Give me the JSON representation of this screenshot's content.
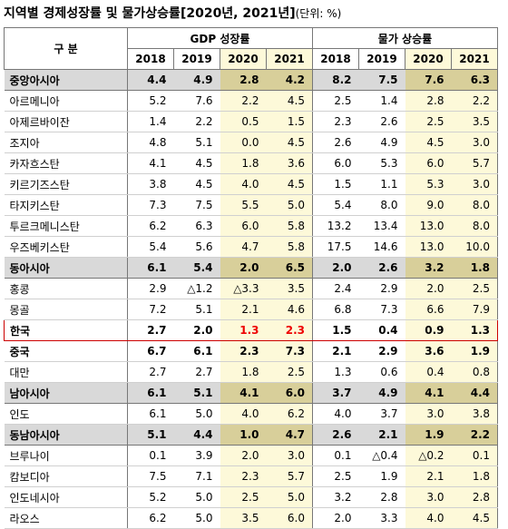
{
  "header": {
    "title": "지역별 경제성장률 및 물가상승률[2020년, 2021년]",
    "unit": "(단위: %)"
  },
  "table": {
    "label_header": "구 분",
    "groups": [
      "GDP 성장률",
      "물가 상승률"
    ],
    "years": [
      "2018",
      "2019",
      "2020",
      "2021",
      "2018",
      "2019",
      "2020",
      "2021"
    ],
    "rows": [
      [
        "중앙아시아",
        "4.4",
        "4.9",
        "2.8",
        "4.2",
        "8.2",
        "7.5",
        "7.6",
        "6.3"
      ],
      [
        "아르메니아",
        "5.2",
        "7.6",
        "2.2",
        "4.5",
        "2.5",
        "1.4",
        "2.8",
        "2.2"
      ],
      [
        "아제르바이잔",
        "1.4",
        "2.2",
        "0.5",
        "1.5",
        "2.3",
        "2.6",
        "2.5",
        "3.5"
      ],
      [
        "조지아",
        "4.8",
        "5.1",
        "0.0",
        "4.5",
        "2.6",
        "4.9",
        "4.5",
        "3.0"
      ],
      [
        "카자흐스탄",
        "4.1",
        "4.5",
        "1.8",
        "3.6",
        "6.0",
        "5.3",
        "6.0",
        "5.7"
      ],
      [
        "키르기즈스탄",
        "3.8",
        "4.5",
        "4.0",
        "4.5",
        "1.5",
        "1.1",
        "5.3",
        "3.0"
      ],
      [
        "타지키스탄",
        "7.3",
        "7.5",
        "5.5",
        "5.0",
        "5.4",
        "8.0",
        "9.0",
        "8.0"
      ],
      [
        "투르크메니스탄",
        "6.2",
        "6.3",
        "6.0",
        "5.8",
        "13.2",
        "13.4",
        "13.0",
        "8.0"
      ],
      [
        "우즈베키스탄",
        "5.4",
        "5.6",
        "4.7",
        "5.8",
        "17.5",
        "14.6",
        "13.0",
        "10.0"
      ],
      [
        "동아시아",
        "6.1",
        "5.4",
        "2.0",
        "6.5",
        "2.0",
        "2.6",
        "3.2",
        "1.8"
      ],
      [
        "홍콩",
        "2.9",
        "△1.2",
        "△3.3",
        "3.5",
        "2.4",
        "2.9",
        "2.0",
        "2.5"
      ],
      [
        "몽골",
        "7.2",
        "5.1",
        "2.1",
        "4.6",
        "6.8",
        "7.3",
        "6.6",
        "7.9"
      ],
      [
        "한국",
        "2.7",
        "2.0",
        "1.3",
        "2.3",
        "1.5",
        "0.4",
        "0.9",
        "1.3"
      ],
      [
        "중국",
        "6.7",
        "6.1",
        "2.3",
        "7.3",
        "2.1",
        "2.9",
        "3.6",
        "1.9"
      ],
      [
        "대만",
        "2.7",
        "2.7",
        "1.8",
        "2.5",
        "1.3",
        "0.6",
        "0.4",
        "0.8"
      ],
      [
        "남아시아",
        "6.1",
        "5.1",
        "4.1",
        "6.0",
        "3.7",
        "4.9",
        "4.1",
        "4.4"
      ],
      [
        "인도",
        "6.1",
        "5.0",
        "4.0",
        "6.2",
        "4.0",
        "3.7",
        "3.0",
        "3.8"
      ],
      [
        "동남아시아",
        "5.1",
        "4.4",
        "1.0",
        "4.7",
        "2.6",
        "2.1",
        "1.9",
        "2.2"
      ],
      [
        "브루나이",
        "0.1",
        "3.9",
        "2.0",
        "3.0",
        "0.1",
        "△0.4",
        "△0.2",
        "0.1"
      ],
      [
        "캄보디아",
        "7.5",
        "7.1",
        "2.3",
        "5.7",
        "2.5",
        "1.9",
        "2.1",
        "1.8"
      ],
      [
        "인도네시아",
        "5.2",
        "5.0",
        "2.5",
        "5.0",
        "3.2",
        "2.8",
        "3.0",
        "2.8"
      ],
      [
        "라오스",
        "6.2",
        "5.0",
        "3.5",
        "6.0",
        "2.0",
        "3.3",
        "4.0",
        "4.5"
      ]
    ]
  }
}
